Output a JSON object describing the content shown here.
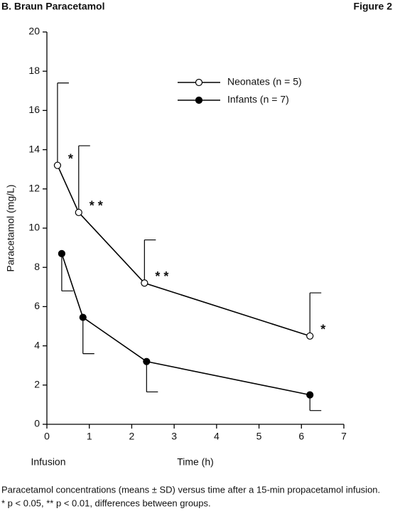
{
  "header": {
    "title": "B. Braun Paracetamol",
    "figure": "Figure 2"
  },
  "chart_data": {
    "type": "line",
    "ylabel": "Paracetamol (mg/L)",
    "xlabel": "Time (h)",
    "x_note": "Infusion",
    "xlim": [
      0,
      7
    ],
    "xticks": [
      0,
      1,
      2,
      3,
      4,
      5,
      6,
      7
    ],
    "ylim": [
      0,
      20
    ],
    "yticks": [
      0,
      2,
      4,
      6,
      8,
      10,
      12,
      14,
      16,
      18,
      20
    ],
    "series": [
      {
        "name": "Neonates (n = 5)",
        "color": "#000000",
        "marker": "open",
        "error_bars": "upper",
        "x": [
          0.25,
          0.75,
          2.3,
          6.2
        ],
        "values": [
          13.2,
          10.8,
          7.2,
          4.5
        ],
        "errors": [
          4.2,
          3.4,
          2.2,
          2.2
        ]
      },
      {
        "name": "Infants (n = 7)",
        "color": "#000000",
        "marker": "filled",
        "error_bars": "lower",
        "x": [
          0.35,
          0.85,
          2.35,
          6.2
        ],
        "values": [
          8.7,
          5.45,
          3.2,
          1.5
        ],
        "errors": [
          1.9,
          1.85,
          1.55,
          0.8
        ]
      }
    ],
    "annotations": [
      "*",
      "* *",
      "* *",
      "*"
    ]
  },
  "caption": [
    "Paracetamol concentrations (means ± SD) versus time after a 15-min propacetamol infusion.",
    "* p < 0.05, ** p < 0.01, differences between groups."
  ]
}
